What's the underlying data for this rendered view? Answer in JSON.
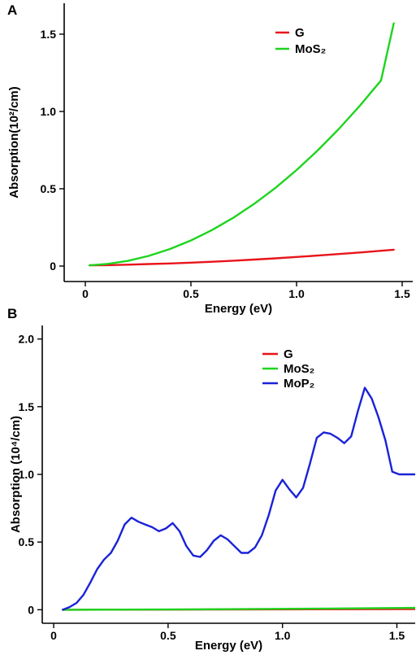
{
  "chart_data": [
    {
      "panel": "A",
      "type": "line",
      "xlabel": "Energy (eV)",
      "ylabel": "Absorption(10²/cm)",
      "xlim": [
        -0.1,
        1.55
      ],
      "ylim": [
        -0.1,
        1.7
      ],
      "xticks": [
        0,
        0.5,
        1.0,
        1.5
      ],
      "xtick_labels": [
        "0",
        "0.5",
        "1.0",
        "1.5"
      ],
      "yticks": [
        0,
        0.5,
        1.0,
        1.5
      ],
      "ytick_labels": [
        "0",
        "0.5",
        "1.0",
        "1.5"
      ],
      "legend_position": "top-right",
      "series": [
        {
          "name": "G",
          "color": "#e8141a",
          "x": [
            0.02,
            0.1,
            0.2,
            0.3,
            0.4,
            0.5,
            0.6,
            0.7,
            0.8,
            0.9,
            1.0,
            1.1,
            1.2,
            1.3,
            1.4,
            1.46
          ],
          "y": [
            0.005,
            0.006,
            0.009,
            0.013,
            0.017,
            0.022,
            0.028,
            0.035,
            0.042,
            0.05,
            0.059,
            0.068,
            0.078,
            0.088,
            0.099,
            0.106
          ]
        },
        {
          "name": "MoS₂",
          "color": "#1ed41e",
          "x": [
            0.02,
            0.1,
            0.2,
            0.3,
            0.4,
            0.5,
            0.6,
            0.7,
            0.8,
            0.9,
            1.0,
            1.1,
            1.2,
            1.3,
            1.4,
            1.46
          ],
          "y": [
            0.005,
            0.013,
            0.033,
            0.066,
            0.11,
            0.166,
            0.233,
            0.312,
            0.403,
            0.506,
            0.621,
            0.748,
            0.887,
            1.038,
            1.201,
            1.57
          ]
        }
      ]
    },
    {
      "panel": "B",
      "type": "line",
      "xlabel": "Energy (eV)",
      "ylabel": "Absorption (10⁴/cm)",
      "xlim": [
        -0.05,
        1.58
      ],
      "ylim": [
        -0.1,
        2.1
      ],
      "xticks": [
        0,
        0.5,
        1.0,
        1.5
      ],
      "xtick_labels": [
        "0",
        "0.5",
        "1.0",
        "1.5"
      ],
      "yticks": [
        0,
        0.5,
        1.0,
        1.5,
        2.0
      ],
      "ytick_labels": [
        "0",
        "0.5",
        "1.0",
        "1.5",
        "2.0"
      ],
      "legend_position": "top-right",
      "series": [
        {
          "name": "G",
          "color": "#e8141a",
          "x": [
            0.04,
            0.5,
            1.0,
            1.58
          ],
          "y": [
            0.0,
            0.001,
            0.003,
            0.005
          ]
        },
        {
          "name": "MoS₂",
          "color": "#1ed41e",
          "x": [
            0.04,
            0.3,
            0.6,
            0.9,
            1.2,
            1.58
          ],
          "y": [
            0.0,
            0.001,
            0.003,
            0.006,
            0.009,
            0.014
          ]
        },
        {
          "name": "MoP₂",
          "color": "#1a22d8",
          "x": [
            0.04,
            0.07,
            0.1,
            0.13,
            0.16,
            0.19,
            0.22,
            0.25,
            0.28,
            0.31,
            0.34,
            0.37,
            0.4,
            0.43,
            0.46,
            0.49,
            0.52,
            0.55,
            0.58,
            0.61,
            0.64,
            0.67,
            0.7,
            0.73,
            0.76,
            0.79,
            0.82,
            0.85,
            0.88,
            0.91,
            0.94,
            0.97,
            1.0,
            1.03,
            1.06,
            1.09,
            1.12,
            1.15,
            1.18,
            1.21,
            1.24,
            1.27,
            1.3,
            1.33,
            1.36,
            1.39,
            1.42,
            1.45,
            1.48,
            1.51,
            1.54,
            1.58
          ],
          "y": [
            0.0,
            0.02,
            0.05,
            0.11,
            0.2,
            0.3,
            0.37,
            0.42,
            0.51,
            0.63,
            0.68,
            0.65,
            0.63,
            0.61,
            0.58,
            0.6,
            0.64,
            0.58,
            0.47,
            0.4,
            0.39,
            0.44,
            0.51,
            0.55,
            0.52,
            0.47,
            0.42,
            0.42,
            0.46,
            0.55,
            0.7,
            0.88,
            0.96,
            0.89,
            0.83,
            0.9,
            1.08,
            1.27,
            1.31,
            1.3,
            1.27,
            1.23,
            1.28,
            1.47,
            1.64,
            1.56,
            1.42,
            1.25,
            1.02,
            1.0,
            1.0,
            1.0
          ]
        }
      ]
    }
  ]
}
